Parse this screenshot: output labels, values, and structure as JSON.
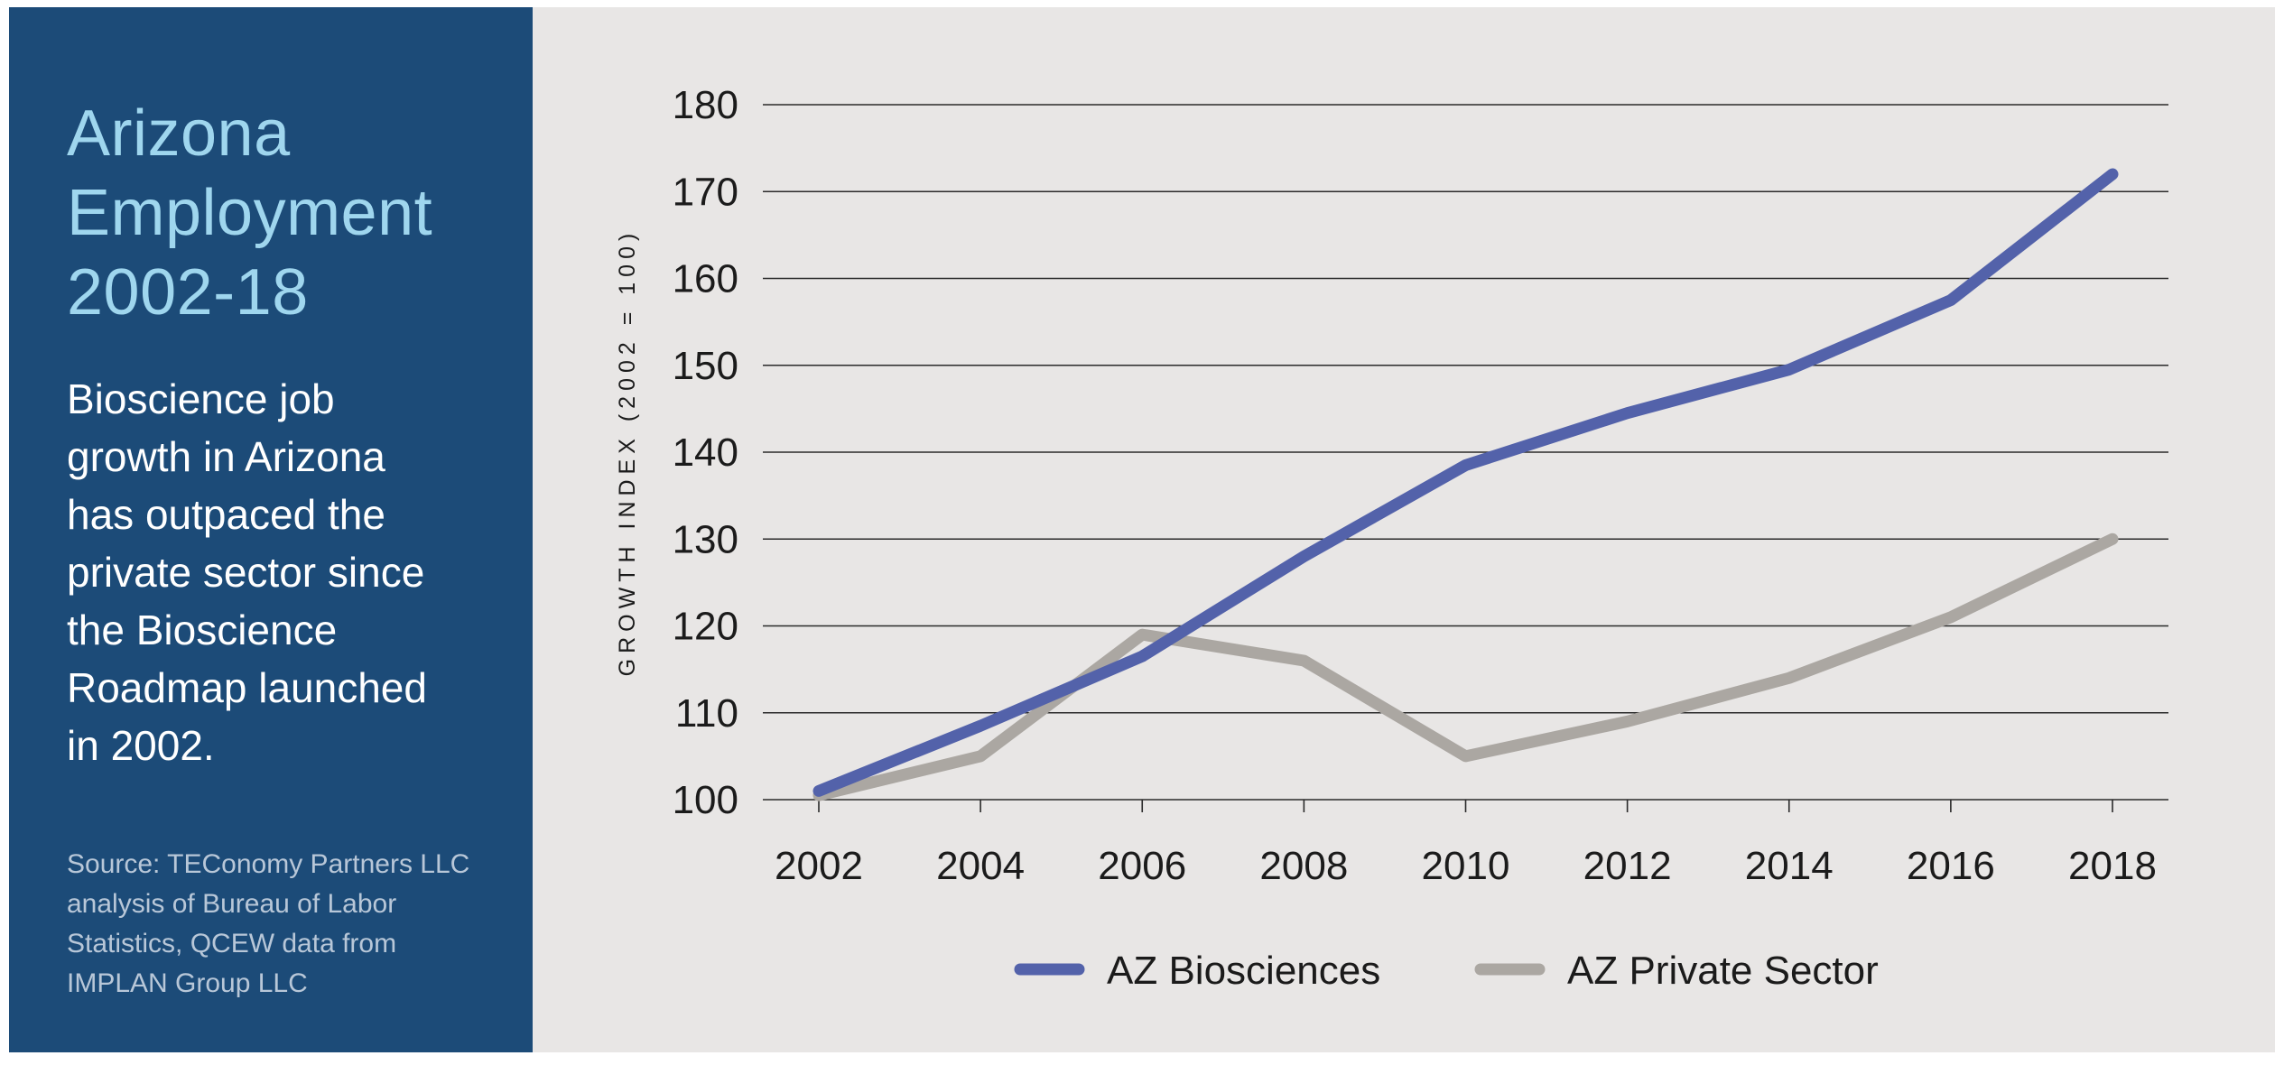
{
  "panel": {
    "title_lines": [
      "Arizona",
      "Employment",
      "2002-18"
    ],
    "description_lines": [
      "Bioscience job",
      "growth in Arizona",
      "has outpaced the",
      "private sector since",
      "the Bioscience",
      "Roadmap launched",
      "in 2002."
    ],
    "source_lines": [
      "Source: TEConomy Partners LLC",
      "analysis of Bureau of Labor",
      "Statistics, QCEW data from",
      "IMPLAN Group LLC"
    ]
  },
  "chart_data": {
    "type": "line",
    "x": [
      2002,
      2004,
      2006,
      2008,
      2010,
      2012,
      2014,
      2016,
      2018
    ],
    "series": [
      {
        "name": "AZ Biosciences",
        "color": "#5362aa",
        "values": [
          101,
          108.5,
          116.5,
          128,
          138.5,
          144.5,
          149.5,
          157.5,
          172
        ]
      },
      {
        "name": "AZ Private Sector",
        "color": "#aba7a2",
        "values": [
          100.5,
          105,
          119,
          116,
          105,
          109,
          114,
          121,
          130
        ]
      }
    ],
    "ylabel": "GROWTH INDEX (2002 = 100)",
    "xlabel": "",
    "ylim": [
      100,
      180
    ],
    "yticks": [
      100,
      110,
      120,
      130,
      140,
      150,
      160,
      170,
      180
    ],
    "grid": true,
    "legend_position": "bottom"
  }
}
